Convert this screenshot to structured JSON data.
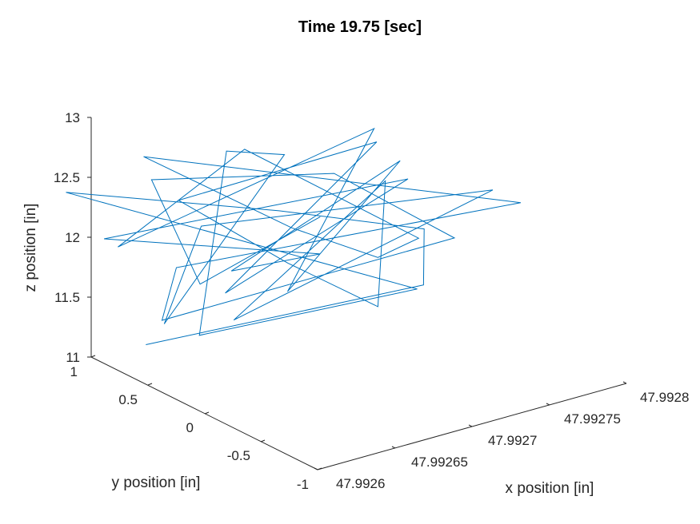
{
  "chart_data": {
    "type": "line",
    "projection": "3d",
    "title": "Time 19.75 [sec]",
    "xlabel": "x position [in]",
    "ylabel": "y position [in]",
    "zlabel": "z position [in]",
    "x_ticks": [
      "47.9926",
      "47.99265",
      "47.9927",
      "47.99275",
      "47.9928"
    ],
    "y_ticks": [
      "-1",
      "-0.5",
      "0",
      "0.5",
      "1"
    ],
    "z_ticks": [
      "11",
      "11.5",
      "12",
      "12.5",
      "13"
    ],
    "xlim": [
      47.9926,
      47.9928
    ],
    "ylim": [
      -1,
      1
    ],
    "zlim": [
      11,
      13
    ],
    "grid": false,
    "line_color": "#0072BD",
    "series": [
      {
        "points": [
          [
            47.99262,
            0.79,
            11.13
          ],
          [
            47.99275,
            0.11,
            11.48
          ],
          [
            47.99279,
            0.65,
            11.55
          ],
          [
            47.99271,
            0.84,
            11.9
          ],
          [
            47.99258,
            0.95,
            12.47
          ],
          [
            47.99274,
            0.03,
            11.52
          ],
          [
            47.99264,
            0.59,
            11.23
          ],
          [
            47.99267,
            0.76,
            12.58
          ],
          [
            47.99272,
            0.93,
            12.29
          ],
          [
            47.99264,
            0.9,
            11.18
          ],
          [
            47.99262,
            0.3,
            12.35
          ],
          [
            47.9928,
            0.18,
            12.06
          ],
          [
            47.99263,
            0.15,
            11.6
          ],
          [
            47.99277,
            0.72,
            11.99
          ],
          [
            47.99273,
            0.24,
            11.31
          ],
          [
            47.99269,
            0.49,
            11.7
          ],
          [
            47.99265,
            0.91,
            12.17
          ],
          [
            47.99276,
            0.66,
            12.38
          ],
          [
            47.99267,
            0.77,
            11.39
          ],
          [
            47.99277,
            0.52,
            12.1
          ],
          [
            47.99259,
            0.75,
            12.14
          ],
          [
            47.99273,
            0.75,
            11.51
          ],
          [
            47.99266,
            0.58,
            11.7
          ],
          [
            47.99274,
            0.18,
            12.52
          ],
          [
            47.9927,
            0.63,
            11.36
          ],
          [
            47.99277,
            0.82,
            12.38
          ],
          [
            47.99261,
            0.9,
            11.93
          ],
          [
            47.99267,
            0.6,
            12.67
          ],
          [
            47.99276,
            0.29,
            11.75
          ],
          [
            47.99276,
            0.65,
            11.42
          ],
          [
            47.99268,
            0.32,
            12.11
          ],
          [
            47.99262,
            0.81,
            12.69
          ],
          [
            47.99281,
            0.07,
            11.97
          ],
          [
            47.99262,
            0.52,
            11.9
          ],
          [
            47.99264,
            0.92,
            11.2
          ],
          [
            47.99277,
            0.11,
            11.8
          ],
          [
            47.99275,
            0.9,
            12.04
          ],
          [
            47.99262,
            0.74,
            12.53
          ],
          [
            47.99265,
            0.72,
            11.56
          ],
          [
            47.99273,
            0.75,
            11.82
          ]
        ]
      }
    ]
  }
}
